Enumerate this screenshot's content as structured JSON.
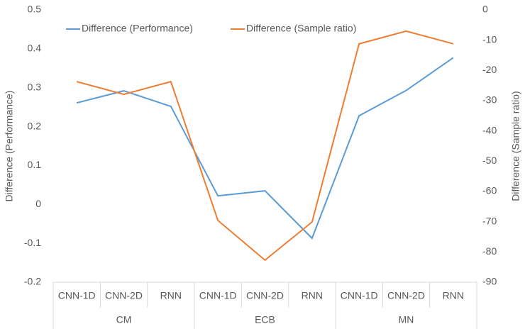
{
  "chart_data": {
    "type": "line",
    "groups": [
      {
        "label": "CM",
        "categories": [
          "CNN-1D",
          "CNN-2D",
          "RNN"
        ]
      },
      {
        "label": "ECB",
        "categories": [
          "CNN-1D",
          "CNN-2D",
          "RNN"
        ]
      },
      {
        "label": "MN",
        "categories": [
          "CNN-1D",
          "CNN-2D",
          "RNN"
        ]
      }
    ],
    "y_label": "Difference (Performance)",
    "y2_label": "Difference (Sample ratio)",
    "ylim": [
      -0.2,
      0.5
    ],
    "yticks": [
      0.5,
      0.4,
      0.3,
      0.2,
      0.1,
      0,
      -0.1,
      -0.2
    ],
    "y2lim": [
      -90,
      0
    ],
    "y2ticks": [
      0,
      -10,
      -20,
      -30,
      -40,
      -50,
      -60,
      -70,
      -80,
      -90
    ],
    "legend": "top-left",
    "series": [
      {
        "name": "Difference (Performance)",
        "color": "#5b9bd5",
        "axis": "y",
        "values": [
          0.261,
          0.292,
          0.252,
          0.022,
          0.035,
          -0.087,
          0.228,
          0.293,
          0.377
        ]
      },
      {
        "name": "Difference (Sample ratio)",
        "color": "#ed7d31",
        "axis": "y2",
        "values": [
          -23.7,
          -27.9,
          -23.7,
          -69.6,
          -82.7,
          -70.1,
          -11.2,
          -7.0,
          -11.2
        ]
      }
    ]
  }
}
